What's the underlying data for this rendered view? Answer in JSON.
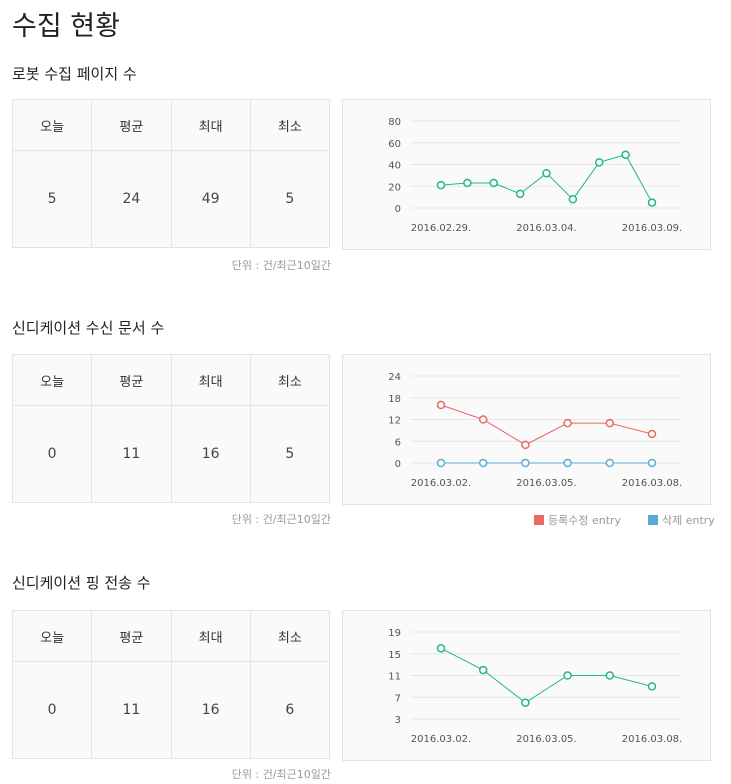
{
  "page": {
    "title": "수집 현황"
  },
  "sections": [
    {
      "title": "로봇 수집 페이지 수",
      "headers": [
        "오늘",
        "평균",
        "최대",
        "최소"
      ],
      "values": [
        "5",
        "24",
        "49",
        "5"
      ],
      "unit_note": "단위 : 건/최근10일간"
    },
    {
      "title": "신디케이션 수신 문서 수",
      "headers": [
        "오늘",
        "평균",
        "최대",
        "최소"
      ],
      "values": [
        "0",
        "11",
        "16",
        "5"
      ],
      "unit_note": "단위 : 건/최근10일간",
      "legend": [
        {
          "label": "등록수정 entry",
          "color": "#e8675f"
        },
        {
          "label": "삭제 entry",
          "color": "#5aabd6"
        }
      ]
    },
    {
      "title": "신디케이션 핑 전송 수",
      "headers": [
        "오늘",
        "평균",
        "최대",
        "최소"
      ],
      "values": [
        "0",
        "11",
        "16",
        "6"
      ],
      "unit_note": "단위 : 건/최근10일간"
    }
  ],
  "chart_data": [
    {
      "type": "line",
      "y_ticks": [
        80,
        60,
        40,
        20,
        0
      ],
      "ylim": [
        0,
        80
      ],
      "x_labels": [
        "2016.02.29.",
        "2016.03.04.",
        "2016.03.09."
      ],
      "series": [
        {
          "color": "#21b97c",
          "values": [
            21,
            23,
            23,
            13,
            32,
            8,
            42,
            49,
            5
          ]
        }
      ]
    },
    {
      "type": "line",
      "y_ticks": [
        24,
        18,
        12,
        6,
        0
      ],
      "ylim": [
        0,
        24
      ],
      "x_labels": [
        "2016.03.02.",
        "2016.03.05.",
        "2016.03.08."
      ],
      "series": [
        {
          "name": "등록수정 entry",
          "color": "#e8675f",
          "values": [
            16,
            12,
            5,
            11,
            11,
            8
          ]
        },
        {
          "name": "삭제 entry",
          "color": "#5aabd6",
          "values": [
            0,
            0,
            0,
            0,
            0,
            0
          ]
        }
      ]
    },
    {
      "type": "line",
      "y_ticks": [
        19,
        15,
        11,
        7,
        3
      ],
      "ylim": [
        3,
        19
      ],
      "x_labels": [
        "2016.03.02.",
        "2016.03.05.",
        "2016.03.08."
      ],
      "series": [
        {
          "color": "#21b97c",
          "values": [
            16,
            12,
            6,
            11,
            11,
            9
          ]
        }
      ]
    }
  ]
}
